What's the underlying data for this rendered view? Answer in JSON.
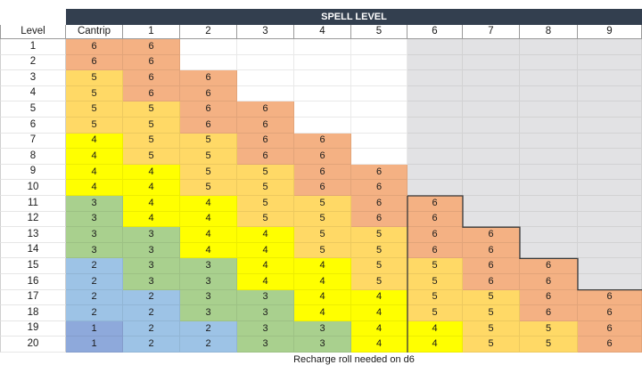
{
  "sheet": {
    "title": "SPELL LEVEL",
    "level_header": "Level",
    "columns": [
      "Cantrip",
      "1",
      "2",
      "3",
      "4",
      "5",
      "6",
      "7",
      "8",
      "9"
    ],
    "footer": "Recharge roll needed on d6",
    "colors": {
      "6": "#f4b183",
      "5": "#ffd966",
      "4": "#ffff00",
      "3": "#a9d08e",
      "2": "#9dc3e6",
      "1": "#8ea9db",
      "unavailable": "#e2e2e4",
      "header": "#333f4f"
    },
    "rows": [
      {
        "level": "1",
        "values": [
          "6",
          "6",
          "",
          "",
          "",
          "",
          "",
          "",
          "",
          ""
        ]
      },
      {
        "level": "2",
        "values": [
          "6",
          "6",
          "",
          "",
          "",
          "",
          "",
          "",
          "",
          ""
        ]
      },
      {
        "level": "3",
        "values": [
          "5",
          "6",
          "6",
          "",
          "",
          "",
          "",
          "",
          "",
          ""
        ]
      },
      {
        "level": "4",
        "values": [
          "5",
          "6",
          "6",
          "",
          "",
          "",
          "",
          "",
          "",
          ""
        ]
      },
      {
        "level": "5",
        "values": [
          "5",
          "5",
          "6",
          "6",
          "",
          "",
          "",
          "",
          "",
          ""
        ]
      },
      {
        "level": "6",
        "values": [
          "5",
          "5",
          "6",
          "6",
          "",
          "",
          "",
          "",
          "",
          ""
        ]
      },
      {
        "level": "7",
        "values": [
          "4",
          "5",
          "5",
          "6",
          "6",
          "",
          "",
          "",
          "",
          ""
        ]
      },
      {
        "level": "8",
        "values": [
          "4",
          "5",
          "5",
          "6",
          "6",
          "",
          "",
          "",
          "",
          ""
        ]
      },
      {
        "level": "9",
        "values": [
          "4",
          "4",
          "5",
          "5",
          "6",
          "6",
          "",
          "",
          "",
          ""
        ]
      },
      {
        "level": "10",
        "values": [
          "4",
          "4",
          "5",
          "5",
          "6",
          "6",
          "",
          "",
          "",
          ""
        ]
      },
      {
        "level": "11",
        "values": [
          "3",
          "4",
          "4",
          "5",
          "5",
          "6",
          "6",
          "",
          "",
          ""
        ]
      },
      {
        "level": "12",
        "values": [
          "3",
          "4",
          "4",
          "5",
          "5",
          "6",
          "6",
          "",
          "",
          ""
        ]
      },
      {
        "level": "13",
        "values": [
          "3",
          "3",
          "4",
          "4",
          "5",
          "5",
          "6",
          "6",
          "",
          ""
        ]
      },
      {
        "level": "14",
        "values": [
          "3",
          "3",
          "4",
          "4",
          "5",
          "5",
          "6",
          "6",
          "",
          ""
        ]
      },
      {
        "level": "15",
        "values": [
          "2",
          "3",
          "3",
          "4",
          "4",
          "5",
          "5",
          "6",
          "6",
          ""
        ]
      },
      {
        "level": "16",
        "values": [
          "2",
          "3",
          "3",
          "4",
          "4",
          "5",
          "5",
          "6",
          "6",
          ""
        ]
      },
      {
        "level": "17",
        "values": [
          "2",
          "2",
          "3",
          "3",
          "4",
          "4",
          "5",
          "5",
          "6",
          "6"
        ]
      },
      {
        "level": "18",
        "values": [
          "2",
          "2",
          "3",
          "3",
          "4",
          "4",
          "5",
          "5",
          "6",
          "6"
        ]
      },
      {
        "level": "19",
        "values": [
          "1",
          "2",
          "2",
          "3",
          "3",
          "4",
          "4",
          "5",
          "5",
          "6"
        ]
      },
      {
        "level": "20",
        "values": [
          "1",
          "2",
          "2",
          "3",
          "3",
          "4",
          "4",
          "5",
          "5",
          "6"
        ]
      }
    ]
  }
}
